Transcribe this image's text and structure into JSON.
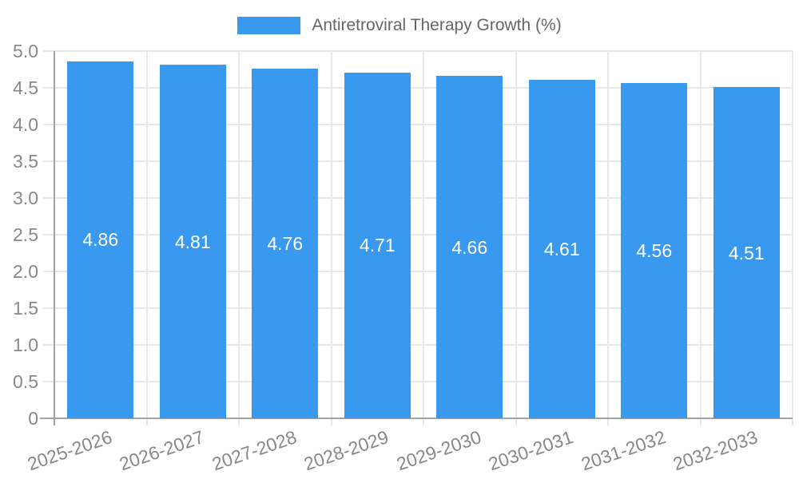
{
  "legend": {
    "label": "Antiretroviral Therapy Growth (%)"
  },
  "chart_data": {
    "type": "bar",
    "title": "",
    "categories": [
      "2025-2026",
      "2026-2027",
      "2027-2028",
      "2028-2029",
      "2029-2030",
      "2030-2031",
      "2031-2032",
      "2032-2033"
    ],
    "values": [
      4.86,
      4.81,
      4.76,
      4.71,
      4.66,
      4.61,
      4.56,
      4.51
    ],
    "value_labels": [
      "4.86",
      "4.81",
      "4.76",
      "4.71",
      "4.66",
      "4.61",
      "4.56",
      "4.51"
    ],
    "series_name": "Antiretroviral Therapy Growth (%)",
    "xlabel": "",
    "ylabel": "",
    "ylim": [
      0,
      5
    ],
    "y_ticks": [
      "0",
      "0.5",
      "1.0",
      "1.5",
      "2.0",
      "2.5",
      "3.0",
      "3.5",
      "4.0",
      "4.5",
      "5.0"
    ],
    "grid": true,
    "legend_position": "top",
    "colors": {
      "bar": "#3999ee",
      "grid": "#e8e8e8",
      "axis": "#a3a3a3",
      "tick_text": "#888888",
      "legend_text": "#666666",
      "value_text": "#ffffff"
    }
  }
}
